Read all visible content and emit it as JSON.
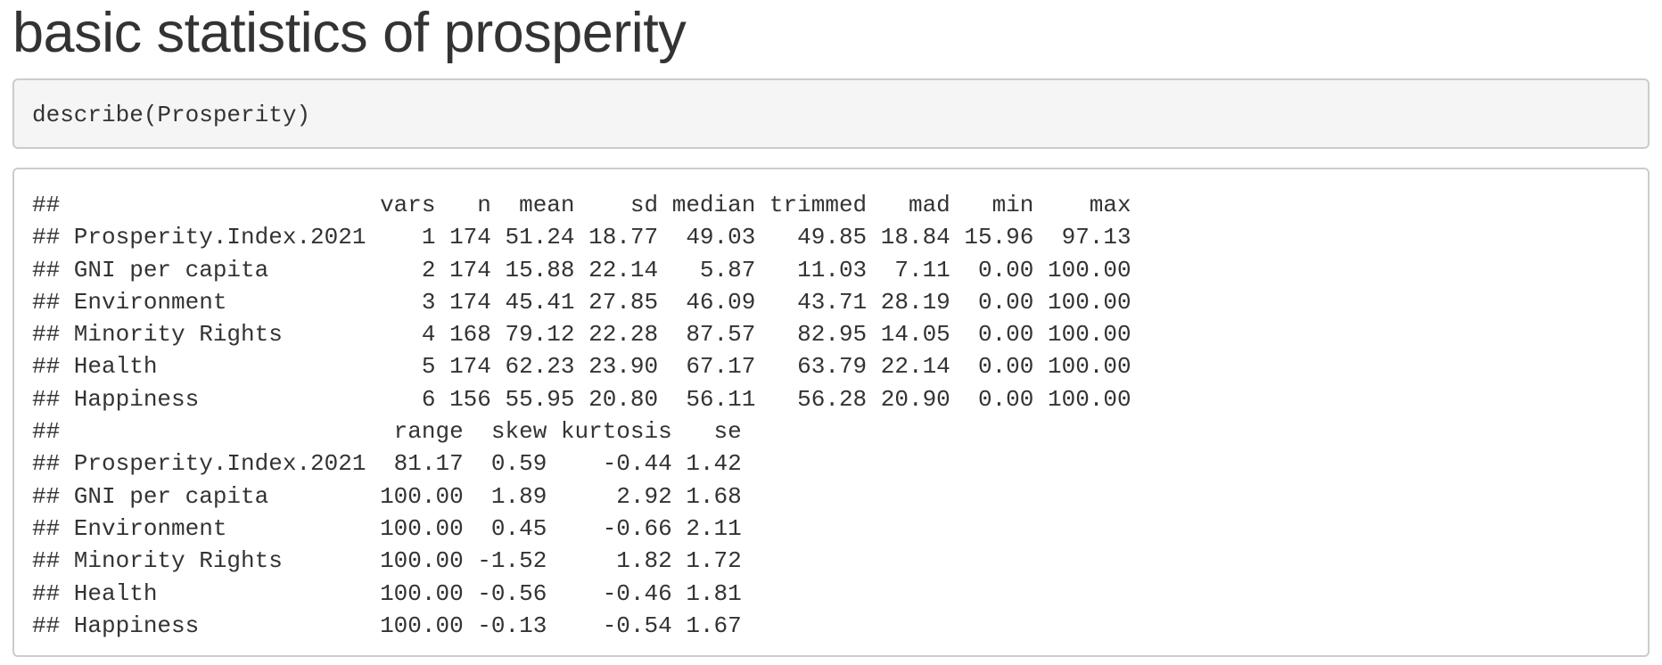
{
  "page": {
    "title": "basic statistics of prosperity"
  },
  "code": {
    "input": "describe(Prosperity)"
  },
  "output": {
    "lines": [
      "##                       vars   n  mean    sd median trimmed   mad   min    max",
      "## Prosperity.Index.2021    1 174 51.24 18.77  49.03   49.85 18.84 15.96  97.13",
      "## GNI per capita           2 174 15.88 22.14   5.87   11.03  7.11  0.00 100.00",
      "## Environment              3 174 45.41 27.85  46.09   43.71 28.19  0.00 100.00",
      "## Minority Rights          4 168 79.12 22.28  87.57   82.95 14.05  0.00 100.00",
      "## Health                   5 174 62.23 23.90  67.17   63.79 22.14  0.00 100.00",
      "## Happiness                6 156 55.95 20.80  56.11   56.28 20.90  0.00 100.00",
      "##                        range  skew kurtosis   se",
      "## Prosperity.Index.2021  81.17  0.59    -0.44 1.42",
      "## GNI per capita        100.00  1.89     2.92 1.68",
      "## Environment           100.00  0.45    -0.66 2.11",
      "## Minority Rights       100.00 -1.52     1.82 1.72",
      "## Health                100.00 -0.56    -0.46 1.81",
      "## Happiness             100.00 -0.13    -0.54 1.67"
    ]
  }
}
